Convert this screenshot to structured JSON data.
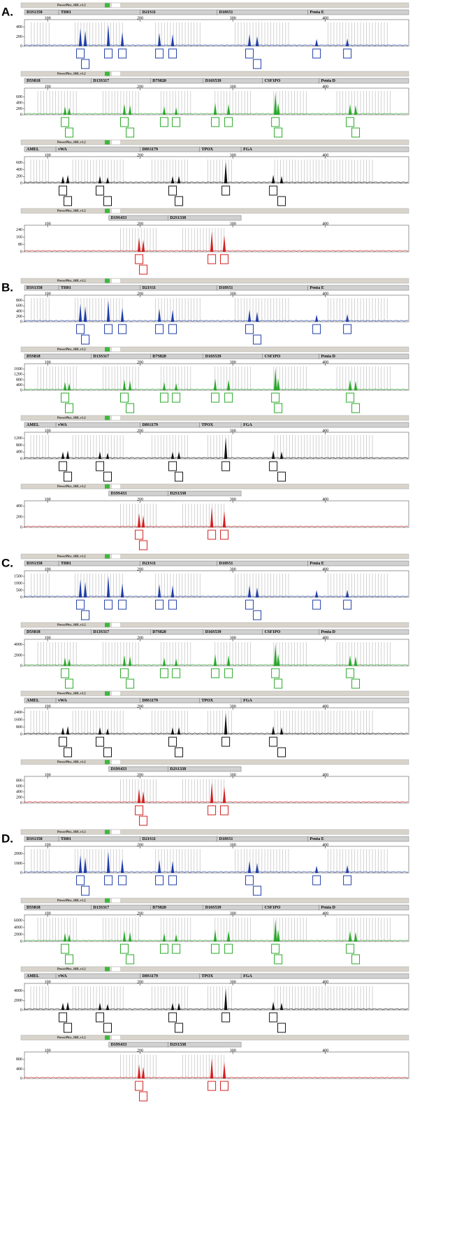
{
  "chart_data": [
    {
      "type": "electropherogram",
      "label": "A.",
      "title": "PowerPlex_16D_v1.2",
      "color": "#1f3da8",
      "loci": [
        {
          "name": "D3S1358",
          "start": 75,
          "end": 112
        },
        {
          "name": "TH01",
          "start": 112,
          "end": 200
        },
        {
          "name": "D21S11",
          "start": 200,
          "end": 283
        },
        {
          "name": "D18S51",
          "start": 283,
          "end": 381
        },
        {
          "name": "Penta E",
          "start": 381,
          "end": 490
        }
      ],
      "x": [
        135.4,
        140.7,
        165.6,
        180.7,
        220.7,
        235,
        318,
        326.3,
        390.5,
        423.7
      ],
      "values": [
        375,
        325,
        450,
        300,
        275,
        250,
        250,
        210,
        150,
        160
      ],
      "xlim": [
        75,
        490
      ],
      "xticks": [
        100,
        200,
        300,
        400
      ],
      "ylim": [
        0,
        500
      ],
      "yticks": [
        0,
        200,
        400
      ]
    },
    {
      "type": "electropherogram",
      "title": "PowerPlex_16D_v1.2",
      "color": "#2aa82a",
      "loci": [
        {
          "name": "D5S818",
          "start": 75,
          "end": 147
        },
        {
          "name": "D13S317",
          "start": 147,
          "end": 211
        },
        {
          "name": "D7S820",
          "start": 211,
          "end": 268
        },
        {
          "name": "D16S539",
          "start": 268,
          "end": 332
        },
        {
          "name": "CSF1PO",
          "start": 332,
          "end": 393
        },
        {
          "name": "Penta D",
          "start": 393,
          "end": 490
        }
      ],
      "x": [
        118.8,
        123.3,
        182.9,
        189,
        225.9,
        238.8,
        281,
        295.4,
        346,
        349,
        426.7,
        432.7
      ],
      "values": [
        280,
        240,
        360,
        320,
        280,
        240,
        400,
        360,
        760,
        400,
        360,
        320
      ],
      "xlim": [
        75,
        490
      ],
      "xticks": [
        100,
        200,
        300,
        400
      ],
      "ylim": [
        0,
        800
      ],
      "yticks": [
        0,
        200,
        400,
        600
      ]
    },
    {
      "type": "electropherogram",
      "title": "PowerPlex_16D_v1.2",
      "color": "#111111",
      "loci": [
        {
          "name": "AMEL",
          "start": 75,
          "end": 109
        },
        {
          "name": "vWA",
          "start": 109,
          "end": 200
        },
        {
          "name": "D8S1179",
          "start": 200,
          "end": 264
        },
        {
          "name": "TPOX",
          "start": 264,
          "end": 309
        },
        {
          "name": "FGA",
          "start": 309,
          "end": 490
        }
      ],
      "x": [
        116.5,
        121.8,
        156.5,
        164.8,
        235,
        241.8,
        292.4,
        343.7,
        352.7
      ],
      "values": [
        210,
        245,
        210,
        175,
        210,
        210,
        630,
        245,
        210
      ],
      "xlim": [
        75,
        490
      ],
      "xticks": [
        100,
        200,
        300,
        400
      ],
      "ylim": [
        0,
        700
      ],
      "yticks": [
        0,
        200,
        400,
        600
      ]
    },
    {
      "type": "electropherogram",
      "title": "PowerPlex_16D_v1.2",
      "color": "#d42020",
      "loci": [
        {
          "name": "D19S433",
          "start": 166,
          "end": 230
        },
        {
          "name": "D2S1338",
          "start": 230,
          "end": 309
        }
      ],
      "x": [
        198.8,
        203.3,
        277.3,
        290.8
      ],
      "values": [
        156,
        130,
        221,
        182
      ],
      "xlim": [
        75,
        490
      ],
      "xticks": [
        100,
        200,
        300,
        400
      ],
      "ylim": [
        0,
        260
      ],
      "yticks": [
        0,
        80,
        160,
        240
      ]
    },
    {
      "type": "electropherogram",
      "label": "B.",
      "title": "PowerPlex_16D_v1.2",
      "color": "#1f3da8",
      "loci": [
        {
          "name": "D3S1358",
          "start": 75,
          "end": 112
        },
        {
          "name": "TH01",
          "start": 112,
          "end": 200
        },
        {
          "name": "D21S11",
          "start": 200,
          "end": 283
        },
        {
          "name": "D18S51",
          "start": 283,
          "end": 381
        },
        {
          "name": "Penta E",
          "start": 381,
          "end": 490
        }
      ],
      "x": [
        135.4,
        140.7,
        165.6,
        180.7,
        220.7,
        235,
        318,
        326.3,
        390.5,
        423.7
      ],
      "values": [
        675,
        585,
        810,
        540,
        495,
        450,
        450,
        378,
        270,
        288
      ],
      "xlim": [
        75,
        490
      ],
      "xticks": [
        100,
        200,
        300,
        400
      ],
      "ylim": [
        0,
        900
      ],
      "yticks": [
        0,
        200,
        400,
        600,
        800
      ]
    },
    {
      "type": "electropherogram",
      "title": "PowerPlex_16D_v1.2",
      "color": "#2aa82a",
      "loci": [
        {
          "name": "D5S818",
          "start": 75,
          "end": 147
        },
        {
          "name": "D13S317",
          "start": 147,
          "end": 211
        },
        {
          "name": "D7S820",
          "start": 211,
          "end": 268
        },
        {
          "name": "D16S539",
          "start": 268,
          "end": 332
        },
        {
          "name": "CSF1PO",
          "start": 332,
          "end": 393
        },
        {
          "name": "Penta D",
          "start": 393,
          "end": 490
        }
      ],
      "x": [
        118.8,
        123.3,
        182.9,
        189,
        225.9,
        238.8,
        281,
        295.4,
        346,
        349,
        426.7,
        432.7
      ],
      "values": [
        630,
        540,
        810,
        720,
        630,
        540,
        900,
        810,
        1710,
        900,
        810,
        720
      ],
      "xlim": [
        75,
        490
      ],
      "xticks": [
        100,
        200,
        300,
        400
      ],
      "ylim": [
        0,
        1800
      ],
      "yticks": [
        0,
        400,
        800,
        1200,
        1600
      ]
    },
    {
      "type": "electropherogram",
      "title": "PowerPlex_16D_v1.2",
      "color": "#111111",
      "loci": [
        {
          "name": "AMEL",
          "start": 75,
          "end": 109
        },
        {
          "name": "vWA",
          "start": 109,
          "end": 200
        },
        {
          "name": "D8S1179",
          "start": 200,
          "end": 264
        },
        {
          "name": "TPOX",
          "start": 264,
          "end": 309
        },
        {
          "name": "FGA",
          "start": 309,
          "end": 490
        }
      ],
      "x": [
        116.5,
        121.8,
        156.5,
        164.8,
        235,
        241.8,
        292.4,
        343.7,
        352.7
      ],
      "values": [
        420,
        490,
        420,
        350,
        420,
        420,
        1260,
        490,
        420
      ],
      "xlim": [
        75,
        490
      ],
      "xticks": [
        100,
        200,
        300,
        400
      ],
      "ylim": [
        0,
        1400
      ],
      "yticks": [
        0,
        400,
        800,
        1200
      ]
    },
    {
      "type": "electropherogram",
      "title": "PowerPlex_16D_v1.2",
      "color": "#d42020",
      "loci": [
        {
          "name": "D19S433",
          "start": 166,
          "end": 230
        },
        {
          "name": "D2S1338",
          "start": 230,
          "end": 309
        }
      ],
      "x": [
        198.8,
        203.3,
        277.3,
        290.8
      ],
      "values": [
        270,
        225,
        383,
        315
      ],
      "xlim": [
        75,
        490
      ],
      "xticks": [
        100,
        200,
        300,
        400
      ],
      "ylim": [
        0,
        450
      ],
      "yticks": [
        0,
        200,
        400
      ]
    },
    {
      "type": "electropherogram",
      "label": "C.",
      "title": "PowerPlex_16D_v1.2",
      "color": "#1f3da8",
      "loci": [
        {
          "name": "D3S1358",
          "start": 75,
          "end": 112
        },
        {
          "name": "TH01",
          "start": 112,
          "end": 200
        },
        {
          "name": "D21S11",
          "start": 200,
          "end": 283
        },
        {
          "name": "D18S51",
          "start": 283,
          "end": 381
        },
        {
          "name": "Penta E",
          "start": 381,
          "end": 490
        }
      ],
      "x": [
        135.4,
        140.7,
        165.6,
        180.7,
        220.7,
        235,
        318,
        326.3,
        390.5,
        423.7
      ],
      "values": [
        1275,
        1105,
        1530,
        1020,
        935,
        850,
        850,
        714,
        510,
        544
      ],
      "xlim": [
        75,
        490
      ],
      "xticks": [
        100,
        200,
        300,
        400
      ],
      "ylim": [
        0,
        1700
      ],
      "yticks": [
        0,
        500,
        1000,
        1500
      ]
    },
    {
      "type": "electropherogram",
      "title": "PowerPlex_16D_v1.2",
      "color": "#2aa82a",
      "loci": [
        {
          "name": "D5S818",
          "start": 75,
          "end": 147
        },
        {
          "name": "D13S317",
          "start": 147,
          "end": 211
        },
        {
          "name": "D7S820",
          "start": 211,
          "end": 268
        },
        {
          "name": "D16S539",
          "start": 268,
          "end": 332
        },
        {
          "name": "CSF1PO",
          "start": 332,
          "end": 393
        },
        {
          "name": "Penta D",
          "start": 393,
          "end": 490
        }
      ],
      "x": [
        118.8,
        123.3,
        182.9,
        189,
        225.9,
        238.8,
        281,
        295.4,
        346,
        349,
        426.7,
        432.7
      ],
      "values": [
        1575,
        1350,
        2025,
        1800,
        1575,
        1350,
        2250,
        2025,
        4275,
        2250,
        2025,
        1800
      ],
      "xlim": [
        75,
        490
      ],
      "xticks": [
        100,
        200,
        300,
        400
      ],
      "ylim": [
        0,
        4500
      ],
      "yticks": [
        0,
        2000,
        4000
      ]
    },
    {
      "type": "electropherogram",
      "title": "PowerPlex_16D_v1.2",
      "color": "#111111",
      "loci": [
        {
          "name": "AMEL",
          "start": 75,
          "end": 109
        },
        {
          "name": "vWA",
          "start": 109,
          "end": 200
        },
        {
          "name": "D8S1179",
          "start": 200,
          "end": 264
        },
        {
          "name": "TPOX",
          "start": 264,
          "end": 309
        },
        {
          "name": "FGA",
          "start": 309,
          "end": 490
        }
      ],
      "x": [
        116.5,
        121.8,
        156.5,
        164.8,
        235,
        241.8,
        292.4,
        343.7,
        352.7
      ],
      "values": [
        780,
        910,
        780,
        650,
        780,
        780,
        2340,
        910,
        780
      ],
      "xlim": [
        75,
        490
      ],
      "xticks": [
        100,
        200,
        300,
        400
      ],
      "ylim": [
        0,
        2600
      ],
      "yticks": [
        0,
        800,
        1600,
        2400
      ]
    },
    {
      "type": "electropherogram",
      "title": "PowerPlex_16D_v1.2",
      "color": "#d42020",
      "loci": [
        {
          "name": "D19S433",
          "start": 166,
          "end": 230
        },
        {
          "name": "D2S1338",
          "start": 230,
          "end": 309
        }
      ],
      "x": [
        198.8,
        203.3,
        277.3,
        290.8
      ],
      "values": [
        510,
        425,
        723,
        595
      ],
      "xlim": [
        75,
        490
      ],
      "xticks": [
        100,
        200,
        300,
        400
      ],
      "ylim": [
        0,
        850
      ],
      "yticks": [
        0,
        200,
        400,
        600,
        800
      ]
    },
    {
      "type": "electropherogram",
      "label": "D.",
      "title": "PowerPlex_16D_v1.2",
      "color": "#1f3da8",
      "loci": [
        {
          "name": "D3S1358",
          "start": 75,
          "end": 112
        },
        {
          "name": "TH01",
          "start": 112,
          "end": 200
        },
        {
          "name": "D21S11",
          "start": 200,
          "end": 283
        },
        {
          "name": "D18S51",
          "start": 283,
          "end": 381
        },
        {
          "name": "Penta E",
          "start": 381,
          "end": 490
        }
      ],
      "x": [
        135.4,
        140.7,
        165.6,
        180.7,
        220.7,
        235,
        318,
        326.3,
        390.5,
        423.7
      ],
      "values": [
        1875,
        1625,
        2250,
        1500,
        1375,
        1250,
        1250,
        1050,
        750,
        800
      ],
      "xlim": [
        75,
        490
      ],
      "xticks": [
        100,
        200,
        300,
        400
      ],
      "ylim": [
        0,
        2500
      ],
      "yticks": [
        0,
        1000,
        2000
      ]
    },
    {
      "type": "electropherogram",
      "title": "PowerPlex_16D_v1.2",
      "color": "#2aa82a",
      "loci": [
        {
          "name": "D5S818",
          "start": 75,
          "end": 147
        },
        {
          "name": "D13S317",
          "start": 147,
          "end": 211
        },
        {
          "name": "D7S820",
          "start": 211,
          "end": 268
        },
        {
          "name": "D16S539",
          "start": 268,
          "end": 332
        },
        {
          "name": "CSF1PO",
          "start": 332,
          "end": 393
        },
        {
          "name": "Penta D",
          "start": 393,
          "end": 490
        }
      ],
      "x": [
        118.8,
        123.3,
        182.9,
        189,
        225.9,
        238.8,
        281,
        295.4,
        346,
        349,
        426.7,
        432.7
      ],
      "values": [
        2380,
        2040,
        3060,
        2720,
        2380,
        2040,
        3400,
        3060,
        6460,
        3400,
        3060,
        2720
      ],
      "xlim": [
        75,
        490
      ],
      "xticks": [
        100,
        200,
        300,
        400
      ],
      "ylim": [
        0,
        6800
      ],
      "yticks": [
        0,
        2000,
        4000,
        6000
      ]
    },
    {
      "type": "electropherogram",
      "title": "PowerPlex_16D_v1.2",
      "color": "#111111",
      "loci": [
        {
          "name": "AMEL",
          "start": 75,
          "end": 109
        },
        {
          "name": "vWA",
          "start": 109,
          "end": 200
        },
        {
          "name": "D8S1179",
          "start": 200,
          "end": 264
        },
        {
          "name": "TPOX",
          "start": 264,
          "end": 309
        },
        {
          "name": "FGA",
          "start": 309,
          "end": 490
        }
      ],
      "x": [
        116.5,
        121.8,
        156.5,
        164.8,
        235,
        241.8,
        292.4,
        343.7,
        352.7
      ],
      "values": [
        1500,
        1750,
        1500,
        1250,
        1500,
        1500,
        4500,
        1750,
        1500
      ],
      "xlim": [
        75,
        490
      ],
      "xticks": [
        100,
        200,
        300,
        400
      ],
      "ylim": [
        0,
        5000
      ],
      "yticks": [
        0,
        2000,
        4000
      ]
    },
    {
      "type": "electropherogram",
      "title": "PowerPlex_16D_v1.2",
      "color": "#d42020",
      "loci": [
        {
          "name": "D19S433",
          "start": 166,
          "end": 230
        },
        {
          "name": "D2S1338",
          "start": 230,
          "end": 309
        }
      ],
      "x": [
        198.8,
        203.3,
        277.3,
        290.8
      ],
      "values": [
        600,
        500,
        850,
        700
      ],
      "xlim": [
        75,
        490
      ],
      "xticks": [
        100,
        200,
        300,
        400
      ],
      "ylim": [
        0,
        1000
      ],
      "yticks": [
        0,
        400,
        800
      ]
    }
  ]
}
